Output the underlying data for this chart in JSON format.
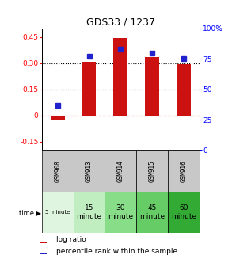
{
  "title": "GDS33 / 1237",
  "samples": [
    "GSM908",
    "GSM913",
    "GSM914",
    "GSM915",
    "GSM916"
  ],
  "time_labels": [
    "5 minute",
    "15\nminute",
    "30\nminute",
    "45\nminute",
    "60\nminute"
  ],
  "log_ratios": [
    -0.03,
    0.31,
    0.445,
    0.335,
    0.295
  ],
  "percentile_ranks": [
    37,
    77,
    83,
    80,
    75
  ],
  "ylim_left": [
    -0.2,
    0.5
  ],
  "ylim_right": [
    0,
    100
  ],
  "yticks_left": [
    -0.15,
    0.0,
    0.15,
    0.3,
    0.45
  ],
  "ytick_left_labels": [
    "-0.15",
    "0",
    "0.15",
    "0.30",
    "0.45"
  ],
  "yticks_right": [
    0,
    25,
    50,
    75,
    100
  ],
  "ytick_right_labels": [
    "0",
    "25",
    "50",
    "75",
    "100%"
  ],
  "bar_color": "#cc1111",
  "dot_color": "#2222cc",
  "zero_line_color": "#cc3333",
  "background_color": "#ffffff",
  "gsm_row_color": "#c8c8c8",
  "time_row_colors": [
    "#e0f5e0",
    "#c0eec0",
    "#88dd88",
    "#66cc66",
    "#33aa33"
  ],
  "bar_width": 0.45
}
